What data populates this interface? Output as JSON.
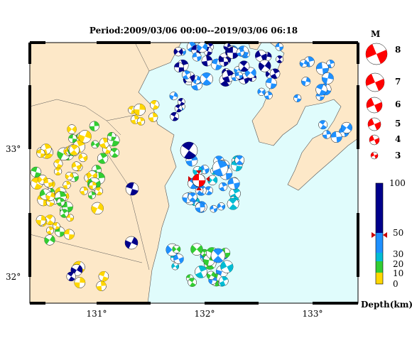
{
  "title": "Period:2009/03/06 00:00--2019/03/06 06:18",
  "axes": {
    "x_ticks": [
      "131°",
      "132°",
      "133°"
    ],
    "y_ticks": [
      "33°",
      "32°"
    ]
  },
  "magnitude_legend": {
    "header": "M",
    "items": [
      "8",
      "7",
      "6",
      "5",
      "4",
      "3"
    ]
  },
  "depth_scale": {
    "label": "Depth(km)",
    "ticks": [
      "100",
      "50",
      "30",
      "20",
      "10",
      "0"
    ],
    "colors": {
      "deep": "#00008b",
      "mid": "#1e90ff",
      "cyan": "#00bcd4",
      "green": "#32cd32",
      "yellow": "#ffd700"
    }
  },
  "colors": {
    "sea": "#e0fcfc",
    "land": "#fde8c8",
    "mechanism_fill": "#ff0000",
    "epicenter_marker": "#cc0000"
  }
}
